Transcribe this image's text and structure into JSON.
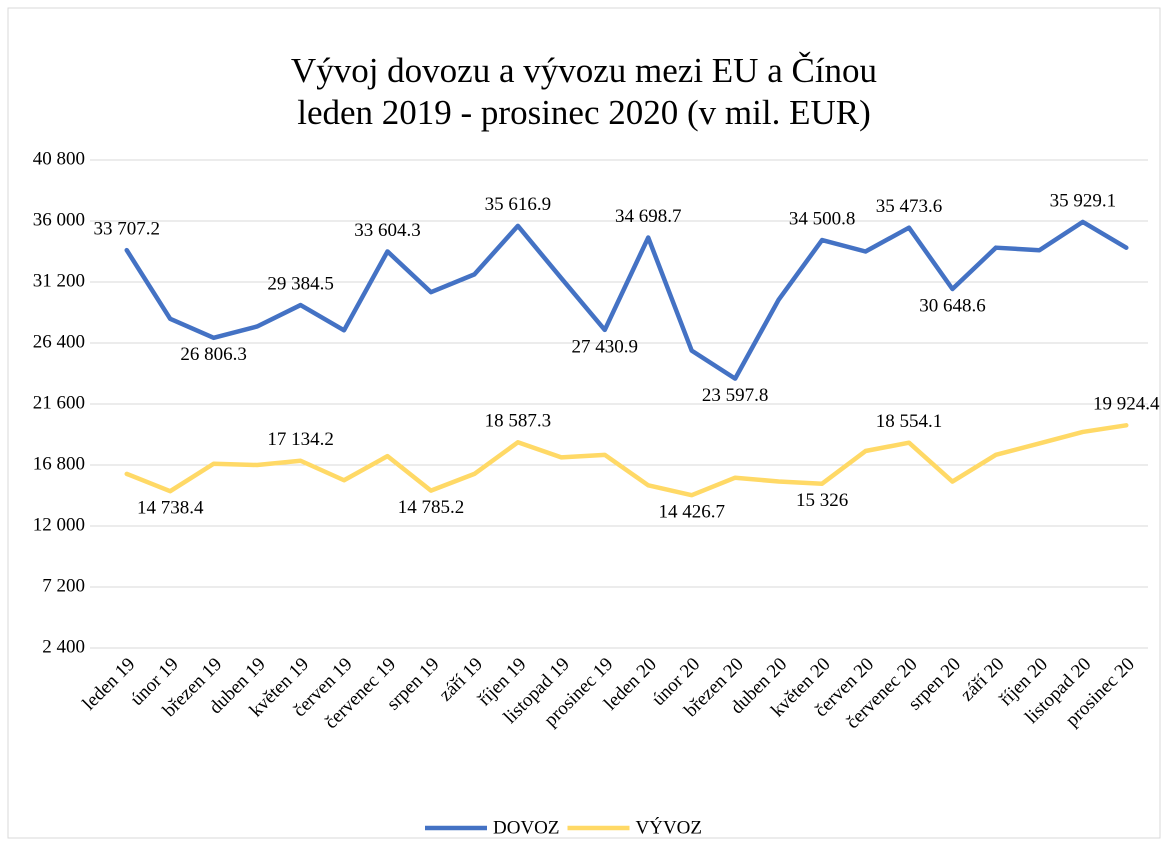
{
  "chart_data": {
    "type": "line",
    "title": "Vývoj dovozu a vývozu mezi EU a Čínou",
    "subtitle": "leden 2019 - prosinec 2020 (v mil. EUR)",
    "categories": [
      "leden 19",
      "únor 19",
      "březen 19",
      "duben 19",
      "květen 19",
      "červen 19",
      "červenec 19",
      "srpen 19",
      "září 19",
      "říjen 19",
      "listopad 19",
      "prosinec 19",
      "leden 20",
      "únor 20",
      "březen 20",
      "duben 20",
      "květen 20",
      "červen 20",
      "červenec 20",
      "srpen 20",
      "září 20",
      "říjen 20",
      "listopad 20",
      "prosinec 20"
    ],
    "series": [
      {
        "name": "DOVOZ",
        "color": "#4472c4",
        "values": [
          33707.2,
          28300,
          26806.3,
          27700,
          29384.5,
          27400,
          33604.3,
          30400,
          31800,
          35616.9,
          31500,
          27430.9,
          34698.7,
          25800,
          23597.8,
          29800,
          34500.8,
          33600,
          35473.6,
          30648.6,
          33900,
          33700,
          35929.1,
          33900
        ],
        "value_labels": [
          "33 707.2",
          null,
          "26 806.3",
          null,
          "29 384.5",
          null,
          "33 604.3",
          null,
          null,
          "35 616.9",
          null,
          "27 430.9",
          "34 698.7",
          null,
          "23 597.8",
          null,
          "34 500.8",
          null,
          "35 473.6",
          "30 648.6",
          null,
          null,
          "35 929.1",
          null
        ]
      },
      {
        "name": "VÝVOZ",
        "color": "#ffd966",
        "values": [
          16100,
          14738.4,
          16900,
          16800,
          17134.2,
          15600,
          17500,
          14785.2,
          16100,
          18587.3,
          17400,
          17600,
          15200,
          14426.7,
          15800,
          15500,
          15326,
          17900,
          18554.1,
          15500,
          17600,
          18500,
          19400,
          19924.4
        ],
        "value_labels": [
          null,
          "14 738.4",
          null,
          null,
          "17 134.2",
          null,
          null,
          "14 785.2",
          null,
          "18 587.3",
          null,
          null,
          null,
          "14 426.7",
          null,
          null,
          "15 326",
          null,
          "18 554.1",
          null,
          null,
          null,
          null,
          "19 924.4"
        ]
      }
    ],
    "ylim": [
      2400,
      40800
    ],
    "yticks": [
      {
        "value": 2400,
        "label": "2 400"
      },
      {
        "value": 7200,
        "label": "7 200"
      },
      {
        "value": 12000,
        "label": "12 000"
      },
      {
        "value": 16800,
        "label": "16 800"
      },
      {
        "value": 21600,
        "label": "21 600"
      },
      {
        "value": 26400,
        "label": "26 400"
      },
      {
        "value": 31200,
        "label": "31 200"
      },
      {
        "value": 36000,
        "label": "36 000"
      },
      {
        "value": 40800,
        "label": "40 800"
      }
    ],
    "grid": true,
    "legend": "bottom"
  }
}
